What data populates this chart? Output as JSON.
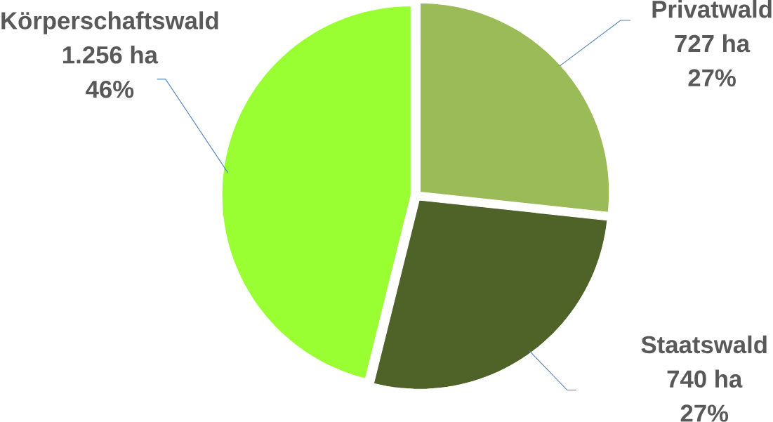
{
  "chart_data": {
    "type": "pie",
    "categories": [
      "Privatwald",
      "Staatswald",
      "Körperschaftswald"
    ],
    "values": [
      727,
      740,
      1256
    ],
    "value_labels": [
      "727 ha",
      "740 ha",
      "1.256 ha"
    ],
    "annotations": [
      "27%",
      "27%",
      "46%"
    ],
    "colors": [
      "#9bbb59",
      "#4f6228",
      "#99ff33"
    ]
  }
}
